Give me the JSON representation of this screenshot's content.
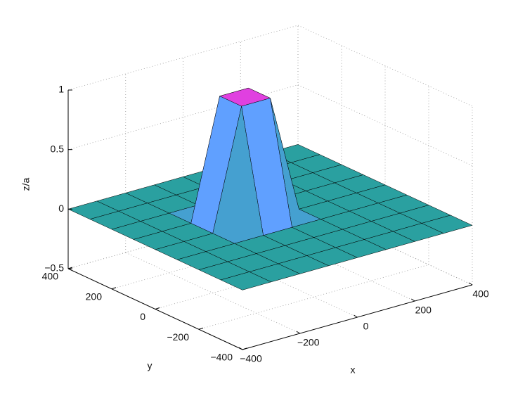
{
  "chart_data": {
    "type": "surface",
    "xlabel": "x",
    "ylabel": "y",
    "zlabel": "z/a",
    "x": [
      -400,
      -300,
      -200,
      -100,
      0,
      100,
      200,
      300,
      400
    ],
    "y": [
      -400,
      -300,
      -200,
      -100,
      0,
      100,
      200,
      300,
      400
    ],
    "z": [
      [
        0,
        0,
        0,
        0,
        0,
        0,
        0,
        0,
        0
      ],
      [
        0,
        0,
        0,
        0,
        0,
        0,
        0,
        0,
        0
      ],
      [
        0,
        0,
        0,
        0,
        0,
        0,
        0,
        0,
        0
      ],
      [
        0,
        0,
        0,
        0,
        0,
        0,
        0,
        0,
        0
      ],
      [
        0,
        0,
        0,
        1,
        1,
        0,
        0,
        0,
        0
      ],
      [
        0,
        0,
        0,
        1,
        1,
        0,
        0,
        0,
        0
      ],
      [
        0,
        0,
        0,
        0,
        0,
        0,
        0,
        0,
        0
      ],
      [
        0,
        0,
        0,
        0,
        0,
        0,
        0,
        0,
        0
      ],
      [
        0,
        0,
        0,
        0,
        0,
        0,
        0,
        0,
        0
      ]
    ],
    "xlim": [
      -400,
      400
    ],
    "ylim": [
      -400,
      400
    ],
    "zlim": [
      -0.5,
      1
    ],
    "xticks": [
      {
        "value": -400,
        "label": "−400"
      },
      {
        "value": -200,
        "label": "−200"
      },
      0,
      200,
      400
    ],
    "yticks": [
      {
        "value": -400,
        "label": "−400"
      },
      {
        "value": -200,
        "label": "−200"
      },
      0,
      200,
      400
    ],
    "zticks": [
      {
        "value": -0.5,
        "label": "−0.5"
      },
      0,
      0.5,
      1
    ],
    "grid": true,
    "colormap": [
      "#1a8080",
      "#2aa0a0",
      "#60a0ff",
      "#e040e0"
    ]
  }
}
